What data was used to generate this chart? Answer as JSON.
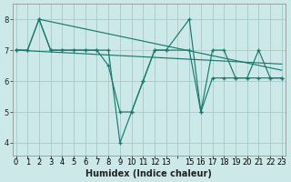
{
  "line_color": "#1a7a6e",
  "bg_color": "#cce8e8",
  "grid_color": "#aacfcf",
  "xlabel": "Humidex (Indice chaleur)",
  "ylim": [
    3.6,
    8.5
  ],
  "xlim": [
    -0.3,
    23.3
  ],
  "yticks": [
    4,
    5,
    6,
    7,
    8
  ],
  "xlabel_fontsize": 7,
  "tick_fontsize": 6.0,
  "line1_x": [
    0,
    1,
    2,
    3,
    4,
    5,
    6,
    7,
    8,
    9,
    10,
    11,
    12,
    13,
    15,
    16,
    17,
    18,
    19,
    20,
    21,
    22,
    23
  ],
  "line1_y": [
    7,
    7,
    8,
    7,
    7,
    7,
    7,
    7,
    6.5,
    5,
    5,
    6,
    7,
    7,
    7,
    5,
    6.1,
    6.1,
    6.1,
    6.1,
    7.0,
    6.1,
    6.1
  ],
  "line2_x": [
    0,
    1,
    2,
    3,
    4,
    5,
    6,
    7,
    8,
    9,
    10,
    11,
    12,
    13,
    15,
    16,
    17,
    18,
    19,
    20,
    21,
    22,
    23
  ],
  "line2_y": [
    7,
    7,
    8,
    7,
    7,
    7,
    7,
    7,
    7,
    4,
    5,
    6,
    7,
    7,
    8,
    5,
    7,
    7,
    6.1,
    6.1,
    6.1,
    6.1,
    6.1
  ],
  "trend1_x": [
    0,
    23
  ],
  "trend1_y": [
    7.0,
    6.55
  ],
  "trend2_x": [
    2,
    23
  ],
  "trend2_y": [
    8.0,
    6.35
  ]
}
